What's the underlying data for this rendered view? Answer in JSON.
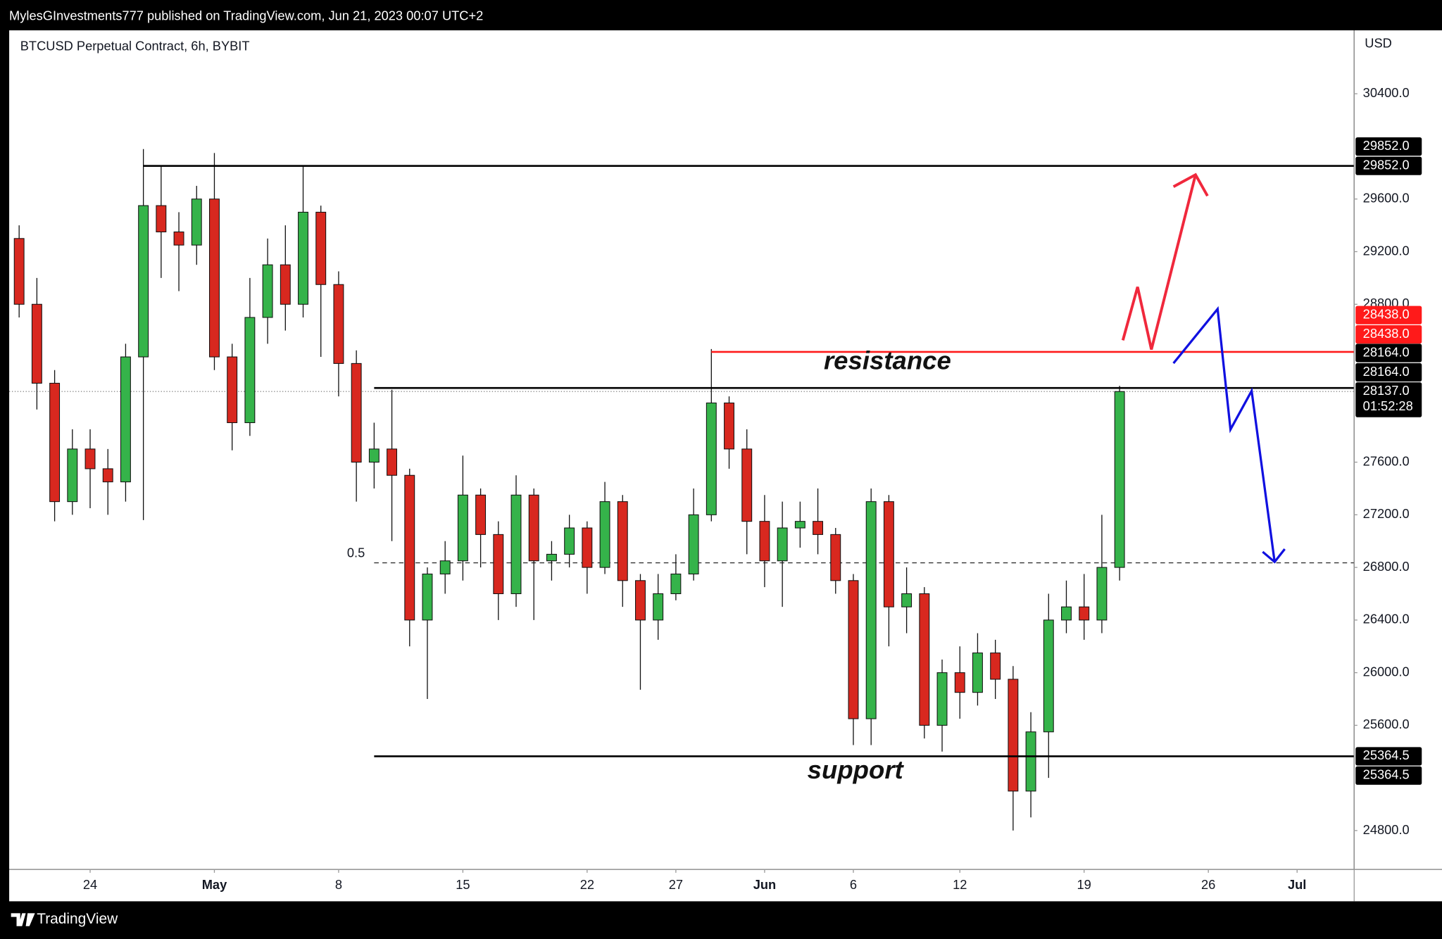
{
  "chart_data": {
    "type": "candlestick",
    "header": "MylesGInvestments777 published on TradingView.com, Jun 21, 2023 00:07 UTC+2",
    "title": "BTCUSD Perpetual Contract, 6h, BYBIT",
    "currency": "USD",
    "brand": "TradingView",
    "up_color": "#35b34a",
    "down_color": "#d8281f",
    "x": [
      -4,
      -3,
      -2,
      -1,
      0,
      1,
      2,
      3,
      4,
      5,
      6,
      7,
      8,
      9,
      10,
      11,
      12,
      13,
      14,
      15,
      16,
      17,
      18,
      19,
      20,
      21,
      22,
      23,
      24,
      25,
      26,
      27,
      28,
      29,
      30,
      31,
      32,
      33,
      34,
      35,
      36,
      37,
      38,
      39,
      40,
      41,
      42,
      43,
      44,
      45,
      46,
      47,
      48,
      49,
      50,
      51,
      52,
      53,
      54,
      55,
      56,
      57,
      58
    ],
    "open": [
      29300,
      28800,
      28200,
      27300,
      27700,
      27550,
      27450,
      28400,
      29550,
      29350,
      29250,
      29600,
      28400,
      27900,
      28700,
      29100,
      28800,
      29500,
      28950,
      28350,
      27600,
      27700,
      27500,
      26400,
      26750,
      26850,
      27350,
      27050,
      26600,
      27350,
      26850,
      26900,
      27100,
      26800,
      27300,
      26700,
      26400,
      26600,
      26750,
      27200,
      28050,
      27700,
      27150,
      26850,
      27100,
      27150,
      27050,
      26700,
      25650,
      27300,
      26500,
      26600,
      25600,
      26000,
      25850,
      26150,
      25950,
      25100,
      25550,
      26400,
      26500,
      26400,
      26800
    ],
    "high": [
      29400,
      29000,
      28300,
      27850,
      27850,
      27700,
      28500,
      29980,
      29850,
      29500,
      29700,
      29950,
      28500,
      29000,
      29300,
      29400,
      29850,
      29550,
      29050,
      28450,
      27900,
      28150,
      27550,
      26800,
      27000,
      27650,
      27400,
      27150,
      27500,
      27400,
      27000,
      27200,
      27150,
      27450,
      27350,
      26750,
      26750,
      26900,
      27400,
      28460,
      28100,
      27850,
      27350,
      27300,
      27300,
      27400,
      27100,
      26750,
      27400,
      27350,
      26800,
      26650,
      26100,
      26200,
      26300,
      26250,
      26050,
      25700,
      26600,
      26700,
      26750,
      27200,
      28180
    ],
    "low": [
      28700,
      28000,
      27150,
      27200,
      27250,
      27200,
      27300,
      27160,
      29000,
      28900,
      29100,
      28300,
      27690,
      27800,
      28500,
      28600,
      28700,
      28400,
      28100,
      27300,
      27400,
      27000,
      26200,
      25800,
      26600,
      26700,
      26800,
      26400,
      26500,
      26400,
      26700,
      26800,
      26600,
      26750,
      26500,
      25870,
      26250,
      26550,
      26700,
      27150,
      27550,
      26900,
      26650,
      26500,
      26950,
      26900,
      26600,
      25450,
      25450,
      26200,
      26300,
      25500,
      25400,
      25650,
      25750,
      25800,
      24800,
      24900,
      25200,
      26300,
      26250,
      26300,
      26700
    ],
    "close": [
      28800,
      28200,
      27300,
      27700,
      27550,
      27450,
      28400,
      29550,
      29350,
      29250,
      29600,
      28400,
      27900,
      28700,
      29100,
      28800,
      29500,
      28950,
      28350,
      27600,
      27700,
      27500,
      26400,
      26750,
      26850,
      27350,
      27050,
      26600,
      27350,
      26850,
      26900,
      27100,
      26800,
      27300,
      26700,
      26400,
      26600,
      26750,
      27200,
      28050,
      27700,
      27150,
      26850,
      27100,
      27150,
      27050,
      26700,
      25650,
      27300,
      26500,
      26600,
      25600,
      26000,
      25850,
      26150,
      25950,
      25100,
      25550,
      26400,
      26500,
      26400,
      26800,
      28137
    ],
    "xlim": [
      -4.56,
      71.19
    ],
    "xticks": [
      {
        "value": 0,
        "label": "24"
      },
      {
        "value": 7,
        "label": "May"
      },
      {
        "value": 14,
        "label": "8"
      },
      {
        "value": 21,
        "label": "15"
      },
      {
        "value": 28,
        "label": "22"
      },
      {
        "value": 33,
        "label": "27"
      },
      {
        "value": 38,
        "label": "Jun"
      },
      {
        "value": 43,
        "label": "6"
      },
      {
        "value": 49,
        "label": "12"
      },
      {
        "value": 56,
        "label": "19"
      },
      {
        "value": 63,
        "label": "26"
      },
      {
        "value": 68,
        "label": "Jul"
      }
    ],
    "ylim": [
      24507,
      30882
    ],
    "yticks": [
      {
        "value": 30400,
        "label": "30400.0"
      },
      {
        "value": 29600,
        "label": "29600.0"
      },
      {
        "value": 29200,
        "label": "29200.0"
      },
      {
        "value": 28800,
        "label": "28800.0"
      },
      {
        "value": 27600,
        "label": "27600.0"
      },
      {
        "value": 27200,
        "label": "27200.0"
      },
      {
        "value": 26800,
        "label": "26800.0"
      },
      {
        "value": 26400,
        "label": "26400.0"
      },
      {
        "value": 26000,
        "label": "26000.0"
      },
      {
        "value": 25600,
        "label": "25600.0"
      },
      {
        "value": 24800,
        "label": "24800.0"
      }
    ],
    "levels": [
      {
        "value": 29852,
        "label": "29852.0",
        "color": "#000000",
        "from": 3
      },
      {
        "value": 28438,
        "label": "28438.0",
        "color": "#ff1a1a",
        "from": 35
      },
      {
        "value": 28164,
        "label": "28164.0",
        "color": "#000000",
        "from": 16
      },
      {
        "value": 25364.5,
        "label": "25364.5",
        "color": "#000000",
        "from": 16
      }
    ],
    "fib": {
      "value": 26835,
      "label": "0.5",
      "from": 16
    },
    "last_price": {
      "value": 28137,
      "label": "28137.0",
      "countdown": "01:52:28"
    },
    "annotations": [
      "resistance",
      "support"
    ]
  }
}
